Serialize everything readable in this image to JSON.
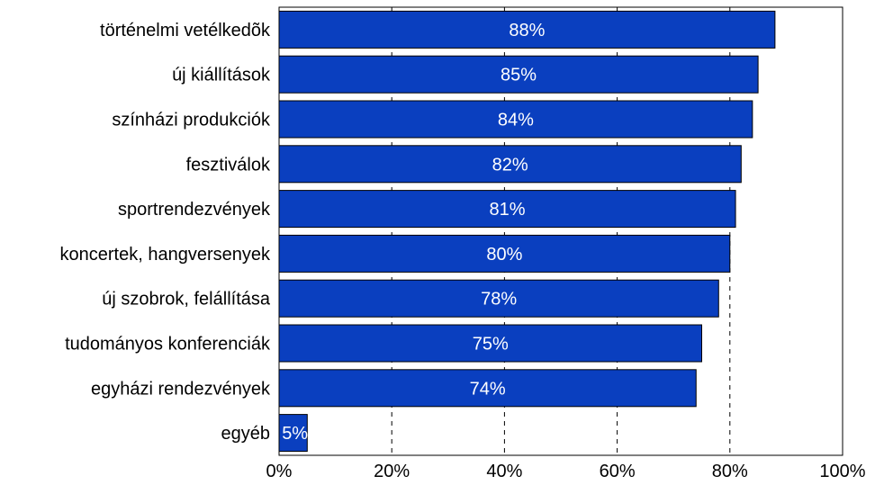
{
  "chart_data": {
    "type": "bar",
    "orientation": "horizontal",
    "categories": [
      "történelmi vetélkedõk",
      "új kiállítások",
      "színházi produkciók",
      "fesztiválok",
      "sportrendezvények",
      "koncertek, hangversenyek",
      "új szobrok, felállítása",
      "tudományos konferenciák",
      "egyházi rendezvények",
      "egyéb"
    ],
    "values": [
      88,
      85,
      84,
      82,
      81,
      80,
      78,
      75,
      74,
      5
    ],
    "value_labels": [
      "88%",
      "85%",
      "84%",
      "82%",
      "81%",
      "80%",
      "78%",
      "75%",
      "74%",
      "5%"
    ],
    "x_ticks": [
      0,
      20,
      40,
      60,
      80,
      100
    ],
    "x_tick_labels": [
      "0%",
      "20%",
      "40%",
      "60%",
      "80%",
      "100%"
    ],
    "xlim": [
      0,
      100
    ],
    "grid": "dashed vertical",
    "legend": "none",
    "colors": {
      "bar_fill": "#0a3fbf",
      "bar_stroke": "#000000",
      "label_text": "#ffffff",
      "axis_text": "#000000"
    }
  }
}
